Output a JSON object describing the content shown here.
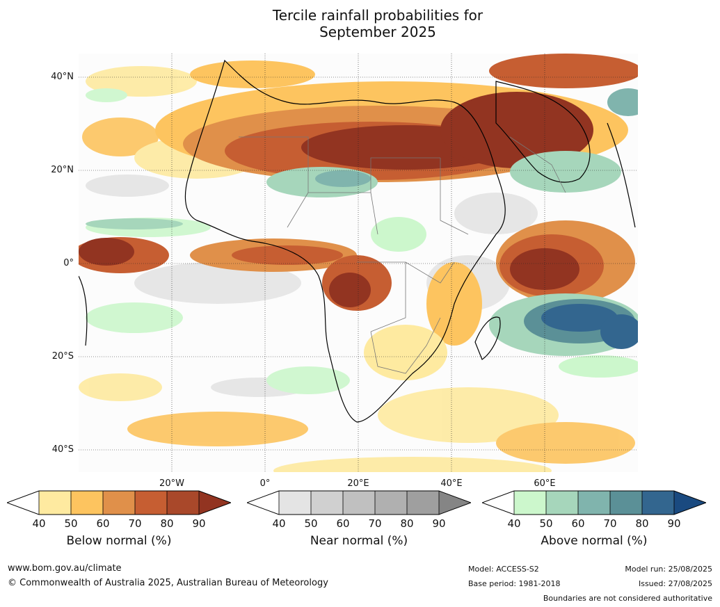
{
  "title_line1": "Tercile rainfall probabilities for",
  "title_line2": "September 2025",
  "lat_labels": [
    "40°N",
    "20°N",
    "0°",
    "20°S",
    "40°S"
  ],
  "lon_labels": [
    "20°W",
    "0°",
    "20°E",
    "40°E",
    "60°E"
  ],
  "legends": [
    {
      "title": "Below normal (%)",
      "ticks": [
        "40",
        "50",
        "60",
        "70",
        "80",
        "90"
      ],
      "colors": [
        "#ffffff",
        "#feeaa0",
        "#fdc45f",
        "#e0904a",
        "#c65e32",
        "#a9482a",
        "#923421"
      ]
    },
    {
      "title": "Near normal (%)",
      "ticks": [
        "40",
        "50",
        "60",
        "70",
        "80",
        "90"
      ],
      "colors": [
        "#ffffff",
        "#e4e4e4",
        "#d0d0d0",
        "#c0c0c0",
        "#b0b0b0",
        "#9f9f9f",
        "#858585"
      ]
    },
    {
      "title": "Above normal (%)",
      "ticks": [
        "40",
        "50",
        "60",
        "70",
        "80",
        "90"
      ],
      "colors": [
        "#ffffff",
        "#ccf7cc",
        "#a6d6bb",
        "#80b4ad",
        "#5b9097",
        "#33668f",
        "#1a4a80"
      ]
    }
  ],
  "footer": {
    "url": "www.bom.gov.au/climate",
    "copyright": "© Commonwealth of Australia 2025, Australian Bureau of Meteorology",
    "model": "Model: ACCESS-S2",
    "base_period": "Base period: 1981-2018",
    "model_run": "Model run: 25/08/2025",
    "issued": "Issued: 27/08/2025",
    "disclaimer": "Boundaries are not considered authoritative"
  }
}
